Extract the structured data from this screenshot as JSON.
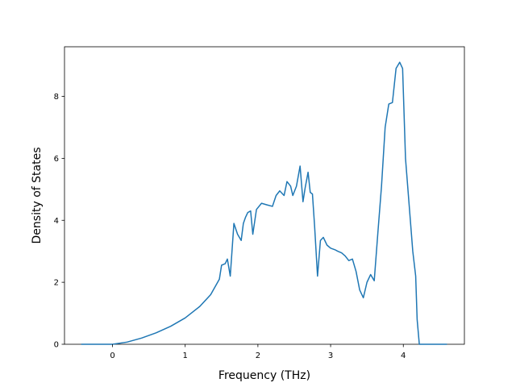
{
  "chart_data": {
    "type": "line",
    "title": "",
    "xlabel": "Frequency (THz)",
    "ylabel": "Density of States",
    "xlim": [
      -0.66,
      4.84
    ],
    "ylim": [
      0,
      9.6
    ],
    "xticks": [
      0,
      1,
      2,
      3,
      4
    ],
    "yticks": [
      0,
      2,
      4,
      6,
      8
    ],
    "grid": false,
    "series_color": "#1f77b4",
    "series": [
      {
        "x": [
          -0.43,
          -0.1,
          0.0,
          0.2,
          0.4,
          0.6,
          0.8,
          1.0,
          1.2,
          1.35,
          1.47,
          1.5,
          1.55,
          1.58,
          1.62,
          1.67,
          1.72,
          1.77,
          1.8,
          1.83,
          1.86,
          1.9,
          1.93,
          1.98,
          2.05,
          2.12,
          2.2,
          2.25,
          2.3,
          2.36,
          2.4,
          2.45,
          2.48,
          2.53,
          2.58,
          2.62,
          2.65,
          2.69,
          2.72,
          2.75,
          2.78,
          2.82,
          2.86,
          2.9,
          2.95,
          3.0,
          3.06,
          3.1,
          3.15,
          3.2,
          3.25,
          3.3,
          3.35,
          3.4,
          3.45,
          3.5,
          3.55,
          3.6,
          3.65,
          3.7,
          3.75,
          3.8,
          3.85,
          3.9,
          3.95,
          3.99,
          4.03,
          4.08,
          4.13,
          4.17,
          4.19,
          4.22,
          4.3,
          4.6
        ],
        "y": [
          0,
          0,
          0,
          0.07,
          0.2,
          0.37,
          0.58,
          0.85,
          1.22,
          1.6,
          2.1,
          2.55,
          2.6,
          2.75,
          2.2,
          3.9,
          3.55,
          3.35,
          3.9,
          4.1,
          4.25,
          4.3,
          3.55,
          4.35,
          4.55,
          4.5,
          4.45,
          4.8,
          4.95,
          4.8,
          5.25,
          5.1,
          4.8,
          5.1,
          5.75,
          4.6,
          5.05,
          5.55,
          4.9,
          4.85,
          3.8,
          2.2,
          3.35,
          3.45,
          3.2,
          3.1,
          3.05,
          3.0,
          2.95,
          2.85,
          2.7,
          2.75,
          2.35,
          1.75,
          1.5,
          2.0,
          2.25,
          2.05,
          3.6,
          5.1,
          7.0,
          7.75,
          7.8,
          8.9,
          9.1,
          8.9,
          6.0,
          4.5,
          3.0,
          2.2,
          0.8,
          0,
          0,
          0
        ]
      }
    ]
  }
}
